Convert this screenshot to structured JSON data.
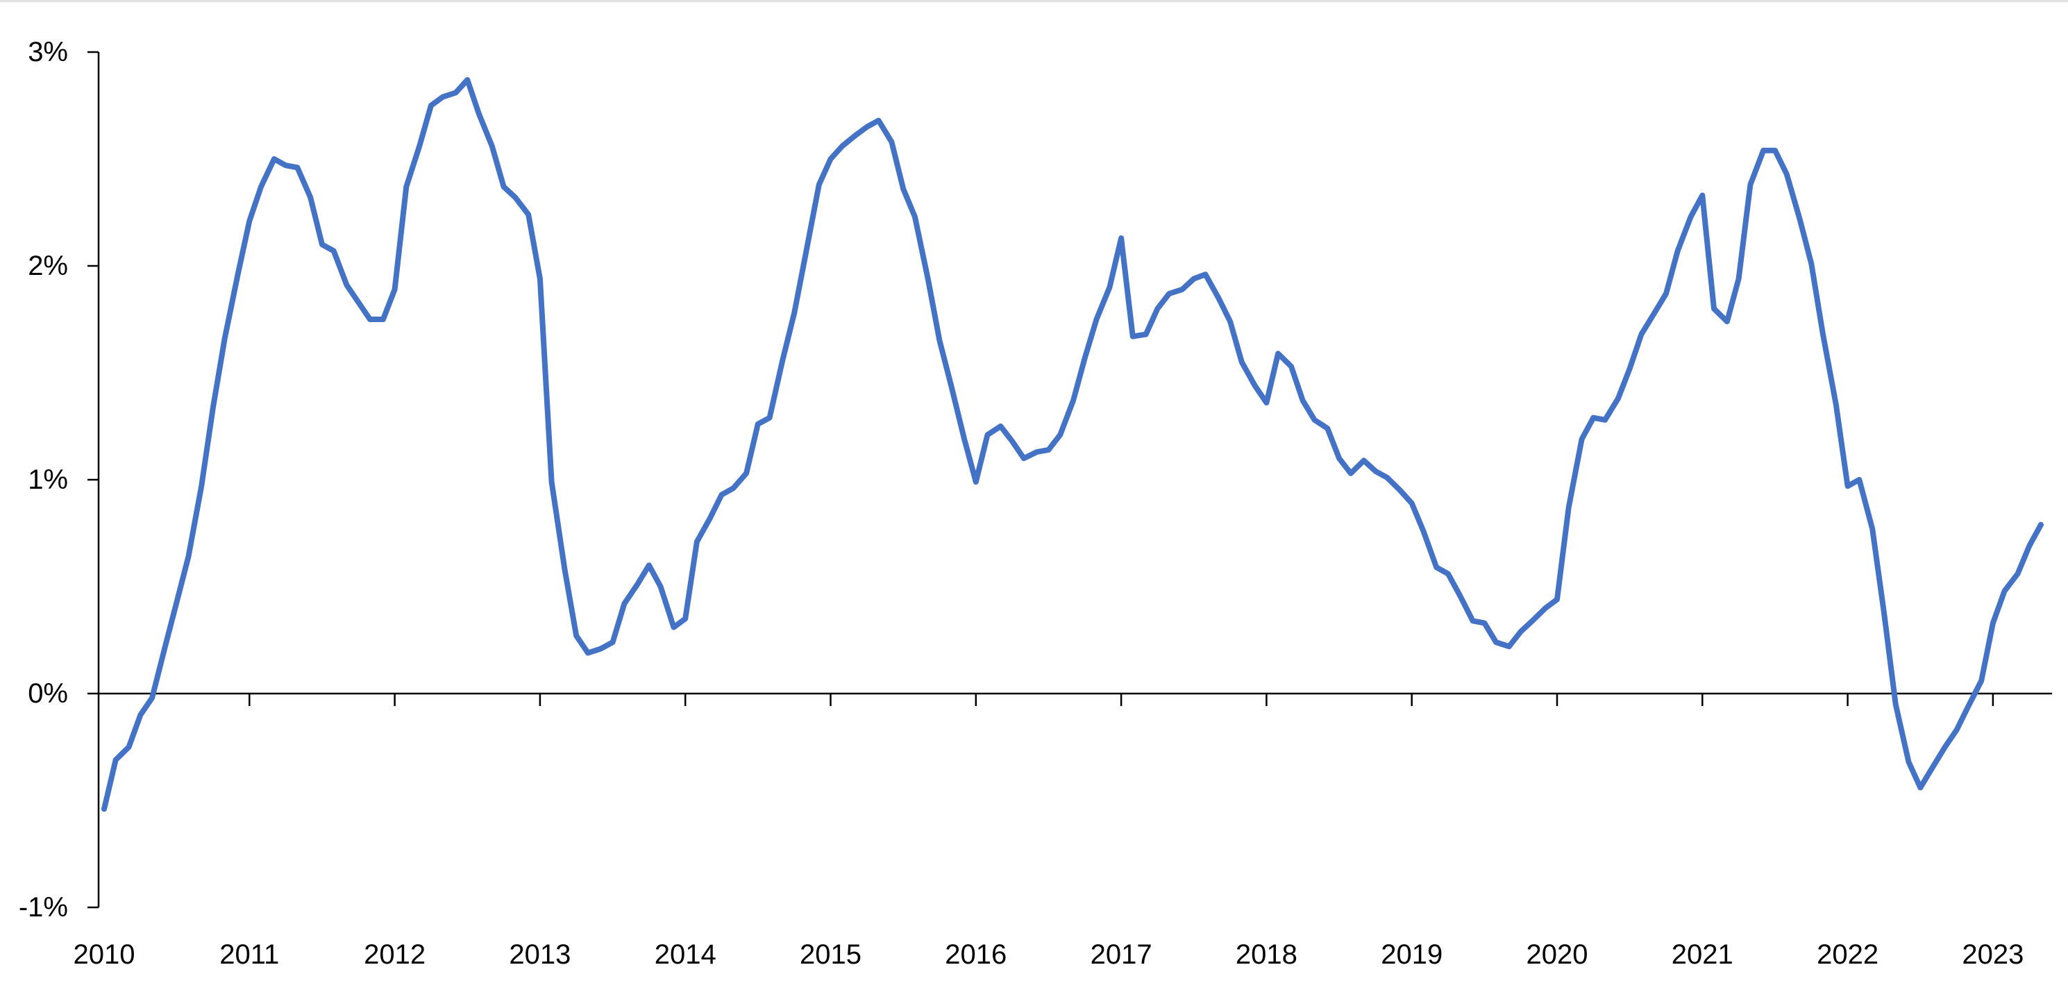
{
  "chart_data": {
    "type": "line",
    "title": "",
    "xlabel": "",
    "ylabel": "",
    "xlim": [
      2010,
      2023.4
    ],
    "ylim": [
      -1,
      3
    ],
    "grid": false,
    "legend": "none",
    "x_ticks": [
      {
        "value": 2010,
        "label": "2010"
      },
      {
        "value": 2011,
        "label": "2011"
      },
      {
        "value": 2012,
        "label": "2012"
      },
      {
        "value": 2013,
        "label": "2013"
      },
      {
        "value": 2014,
        "label": "2014"
      },
      {
        "value": 2015,
        "label": "2015"
      },
      {
        "value": 2016,
        "label": "2016"
      },
      {
        "value": 2017,
        "label": "2017"
      },
      {
        "value": 2018,
        "label": "2018"
      },
      {
        "value": 2019,
        "label": "2019"
      },
      {
        "value": 2020,
        "label": "2020"
      },
      {
        "value": 2021,
        "label": "2021"
      },
      {
        "value": 2022,
        "label": "2022"
      },
      {
        "value": 2023,
        "label": "2023"
      }
    ],
    "y_ticks": [
      {
        "value": 3,
        "label": "3%"
      },
      {
        "value": 2,
        "label": "2%"
      },
      {
        "value": 1,
        "label": "1%"
      },
      {
        "value": 0,
        "label": "0%"
      },
      {
        "value": -1,
        "label": "-1%"
      }
    ],
    "series": [
      {
        "color": "#4472c4",
        "points": [
          [
            2010.0,
            -0.54
          ],
          [
            2010.08,
            -0.31
          ],
          [
            2010.17,
            -0.25
          ],
          [
            2010.25,
            -0.1
          ],
          [
            2010.33,
            -0.02
          ],
          [
            2010.42,
            0.22
          ],
          [
            2010.5,
            0.43
          ],
          [
            2010.58,
            0.64
          ],
          [
            2010.67,
            0.97
          ],
          [
            2010.75,
            1.34
          ],
          [
            2010.83,
            1.66
          ],
          [
            2010.92,
            1.96
          ],
          [
            2011.0,
            2.21
          ],
          [
            2011.08,
            2.37
          ],
          [
            2011.17,
            2.5
          ],
          [
            2011.25,
            2.47
          ],
          [
            2011.33,
            2.46
          ],
          [
            2011.42,
            2.32
          ],
          [
            2011.5,
            2.1
          ],
          [
            2011.58,
            2.07
          ],
          [
            2011.67,
            1.91
          ],
          [
            2011.75,
            1.83
          ],
          [
            2011.83,
            1.75
          ],
          [
            2011.92,
            1.75
          ],
          [
            2012.0,
            1.89
          ],
          [
            2012.08,
            2.37
          ],
          [
            2012.17,
            2.56
          ],
          [
            2012.25,
            2.75
          ],
          [
            2012.33,
            2.79
          ],
          [
            2012.42,
            2.81
          ],
          [
            2012.5,
            2.87
          ],
          [
            2012.58,
            2.71
          ],
          [
            2012.67,
            2.56
          ],
          [
            2012.75,
            2.37
          ],
          [
            2012.83,
            2.32
          ],
          [
            2012.92,
            2.24
          ],
          [
            2013.0,
            1.94
          ],
          [
            2013.08,
            0.99
          ],
          [
            2013.17,
            0.58
          ],
          [
            2013.25,
            0.27
          ],
          [
            2013.33,
            0.19
          ],
          [
            2013.42,
            0.21
          ],
          [
            2013.5,
            0.24
          ],
          [
            2013.58,
            0.42
          ],
          [
            2013.67,
            0.51
          ],
          [
            2013.75,
            0.6
          ],
          [
            2013.83,
            0.5
          ],
          [
            2013.92,
            0.31
          ],
          [
            2014.0,
            0.35
          ],
          [
            2014.08,
            0.71
          ],
          [
            2014.17,
            0.82
          ],
          [
            2014.25,
            0.93
          ],
          [
            2014.33,
            0.96
          ],
          [
            2014.42,
            1.03
          ],
          [
            2014.5,
            1.26
          ],
          [
            2014.58,
            1.29
          ],
          [
            2014.67,
            1.56
          ],
          [
            2014.75,
            1.78
          ],
          [
            2014.83,
            2.06
          ],
          [
            2014.92,
            2.38
          ],
          [
            2015.0,
            2.5
          ],
          [
            2015.08,
            2.56
          ],
          [
            2015.17,
            2.61
          ],
          [
            2015.25,
            2.65
          ],
          [
            2015.33,
            2.68
          ],
          [
            2015.42,
            2.58
          ],
          [
            2015.5,
            2.36
          ],
          [
            2015.58,
            2.23
          ],
          [
            2015.67,
            1.94
          ],
          [
            2015.75,
            1.65
          ],
          [
            2015.83,
            1.44
          ],
          [
            2015.92,
            1.19
          ],
          [
            2016.0,
            0.99
          ],
          [
            2016.08,
            1.21
          ],
          [
            2016.17,
            1.25
          ],
          [
            2016.25,
            1.18
          ],
          [
            2016.33,
            1.1
          ],
          [
            2016.42,
            1.13
          ],
          [
            2016.5,
            1.14
          ],
          [
            2016.58,
            1.21
          ],
          [
            2016.67,
            1.37
          ],
          [
            2016.75,
            1.57
          ],
          [
            2016.83,
            1.75
          ],
          [
            2016.92,
            1.9
          ],
          [
            2017.0,
            2.13
          ],
          [
            2017.08,
            1.67
          ],
          [
            2017.17,
            1.68
          ],
          [
            2017.25,
            1.8
          ],
          [
            2017.33,
            1.87
          ],
          [
            2017.42,
            1.89
          ],
          [
            2017.5,
            1.94
          ],
          [
            2017.58,
            1.96
          ],
          [
            2017.67,
            1.85
          ],
          [
            2017.75,
            1.74
          ],
          [
            2017.83,
            1.55
          ],
          [
            2017.92,
            1.44
          ],
          [
            2018.0,
            1.36
          ],
          [
            2018.08,
            1.59
          ],
          [
            2018.17,
            1.53
          ],
          [
            2018.25,
            1.37
          ],
          [
            2018.33,
            1.28
          ],
          [
            2018.42,
            1.24
          ],
          [
            2018.5,
            1.1
          ],
          [
            2018.58,
            1.03
          ],
          [
            2018.67,
            1.09
          ],
          [
            2018.75,
            1.04
          ],
          [
            2018.83,
            1.01
          ],
          [
            2018.92,
            0.95
          ],
          [
            2019.0,
            0.89
          ],
          [
            2019.08,
            0.76
          ],
          [
            2019.17,
            0.59
          ],
          [
            2019.25,
            0.56
          ],
          [
            2019.33,
            0.46
          ],
          [
            2019.42,
            0.34
          ],
          [
            2019.5,
            0.33
          ],
          [
            2019.58,
            0.24
          ],
          [
            2019.67,
            0.22
          ],
          [
            2019.75,
            0.29
          ],
          [
            2019.83,
            0.34
          ],
          [
            2019.92,
            0.4
          ],
          [
            2020.0,
            0.44
          ],
          [
            2020.08,
            0.87
          ],
          [
            2020.17,
            1.19
          ],
          [
            2020.25,
            1.29
          ],
          [
            2020.33,
            1.28
          ],
          [
            2020.42,
            1.38
          ],
          [
            2020.5,
            1.52
          ],
          [
            2020.58,
            1.68
          ],
          [
            2020.67,
            1.78
          ],
          [
            2020.75,
            1.87
          ],
          [
            2020.83,
            2.07
          ],
          [
            2020.92,
            2.23
          ],
          [
            2021.0,
            2.33
          ],
          [
            2021.08,
            1.8
          ],
          [
            2021.17,
            1.74
          ],
          [
            2021.25,
            1.94
          ],
          [
            2021.33,
            2.38
          ],
          [
            2021.42,
            2.54
          ],
          [
            2021.5,
            2.54
          ],
          [
            2021.58,
            2.43
          ],
          [
            2021.67,
            2.22
          ],
          [
            2021.75,
            2.01
          ],
          [
            2021.83,
            1.68
          ],
          [
            2021.92,
            1.35
          ],
          [
            2022.0,
            0.97
          ],
          [
            2022.08,
            1.0
          ],
          [
            2022.17,
            0.77
          ],
          [
            2022.25,
            0.38
          ],
          [
            2022.33,
            -0.05
          ],
          [
            2022.42,
            -0.32
          ],
          [
            2022.5,
            -0.44
          ],
          [
            2022.58,
            -0.35
          ],
          [
            2022.67,
            -0.25
          ],
          [
            2022.75,
            -0.17
          ],
          [
            2022.83,
            -0.06
          ],
          [
            2022.92,
            0.06
          ],
          [
            2023.0,
            0.33
          ],
          [
            2023.08,
            0.48
          ],
          [
            2023.17,
            0.56
          ],
          [
            2023.25,
            0.69
          ],
          [
            2023.33,
            0.79
          ]
        ]
      }
    ]
  }
}
